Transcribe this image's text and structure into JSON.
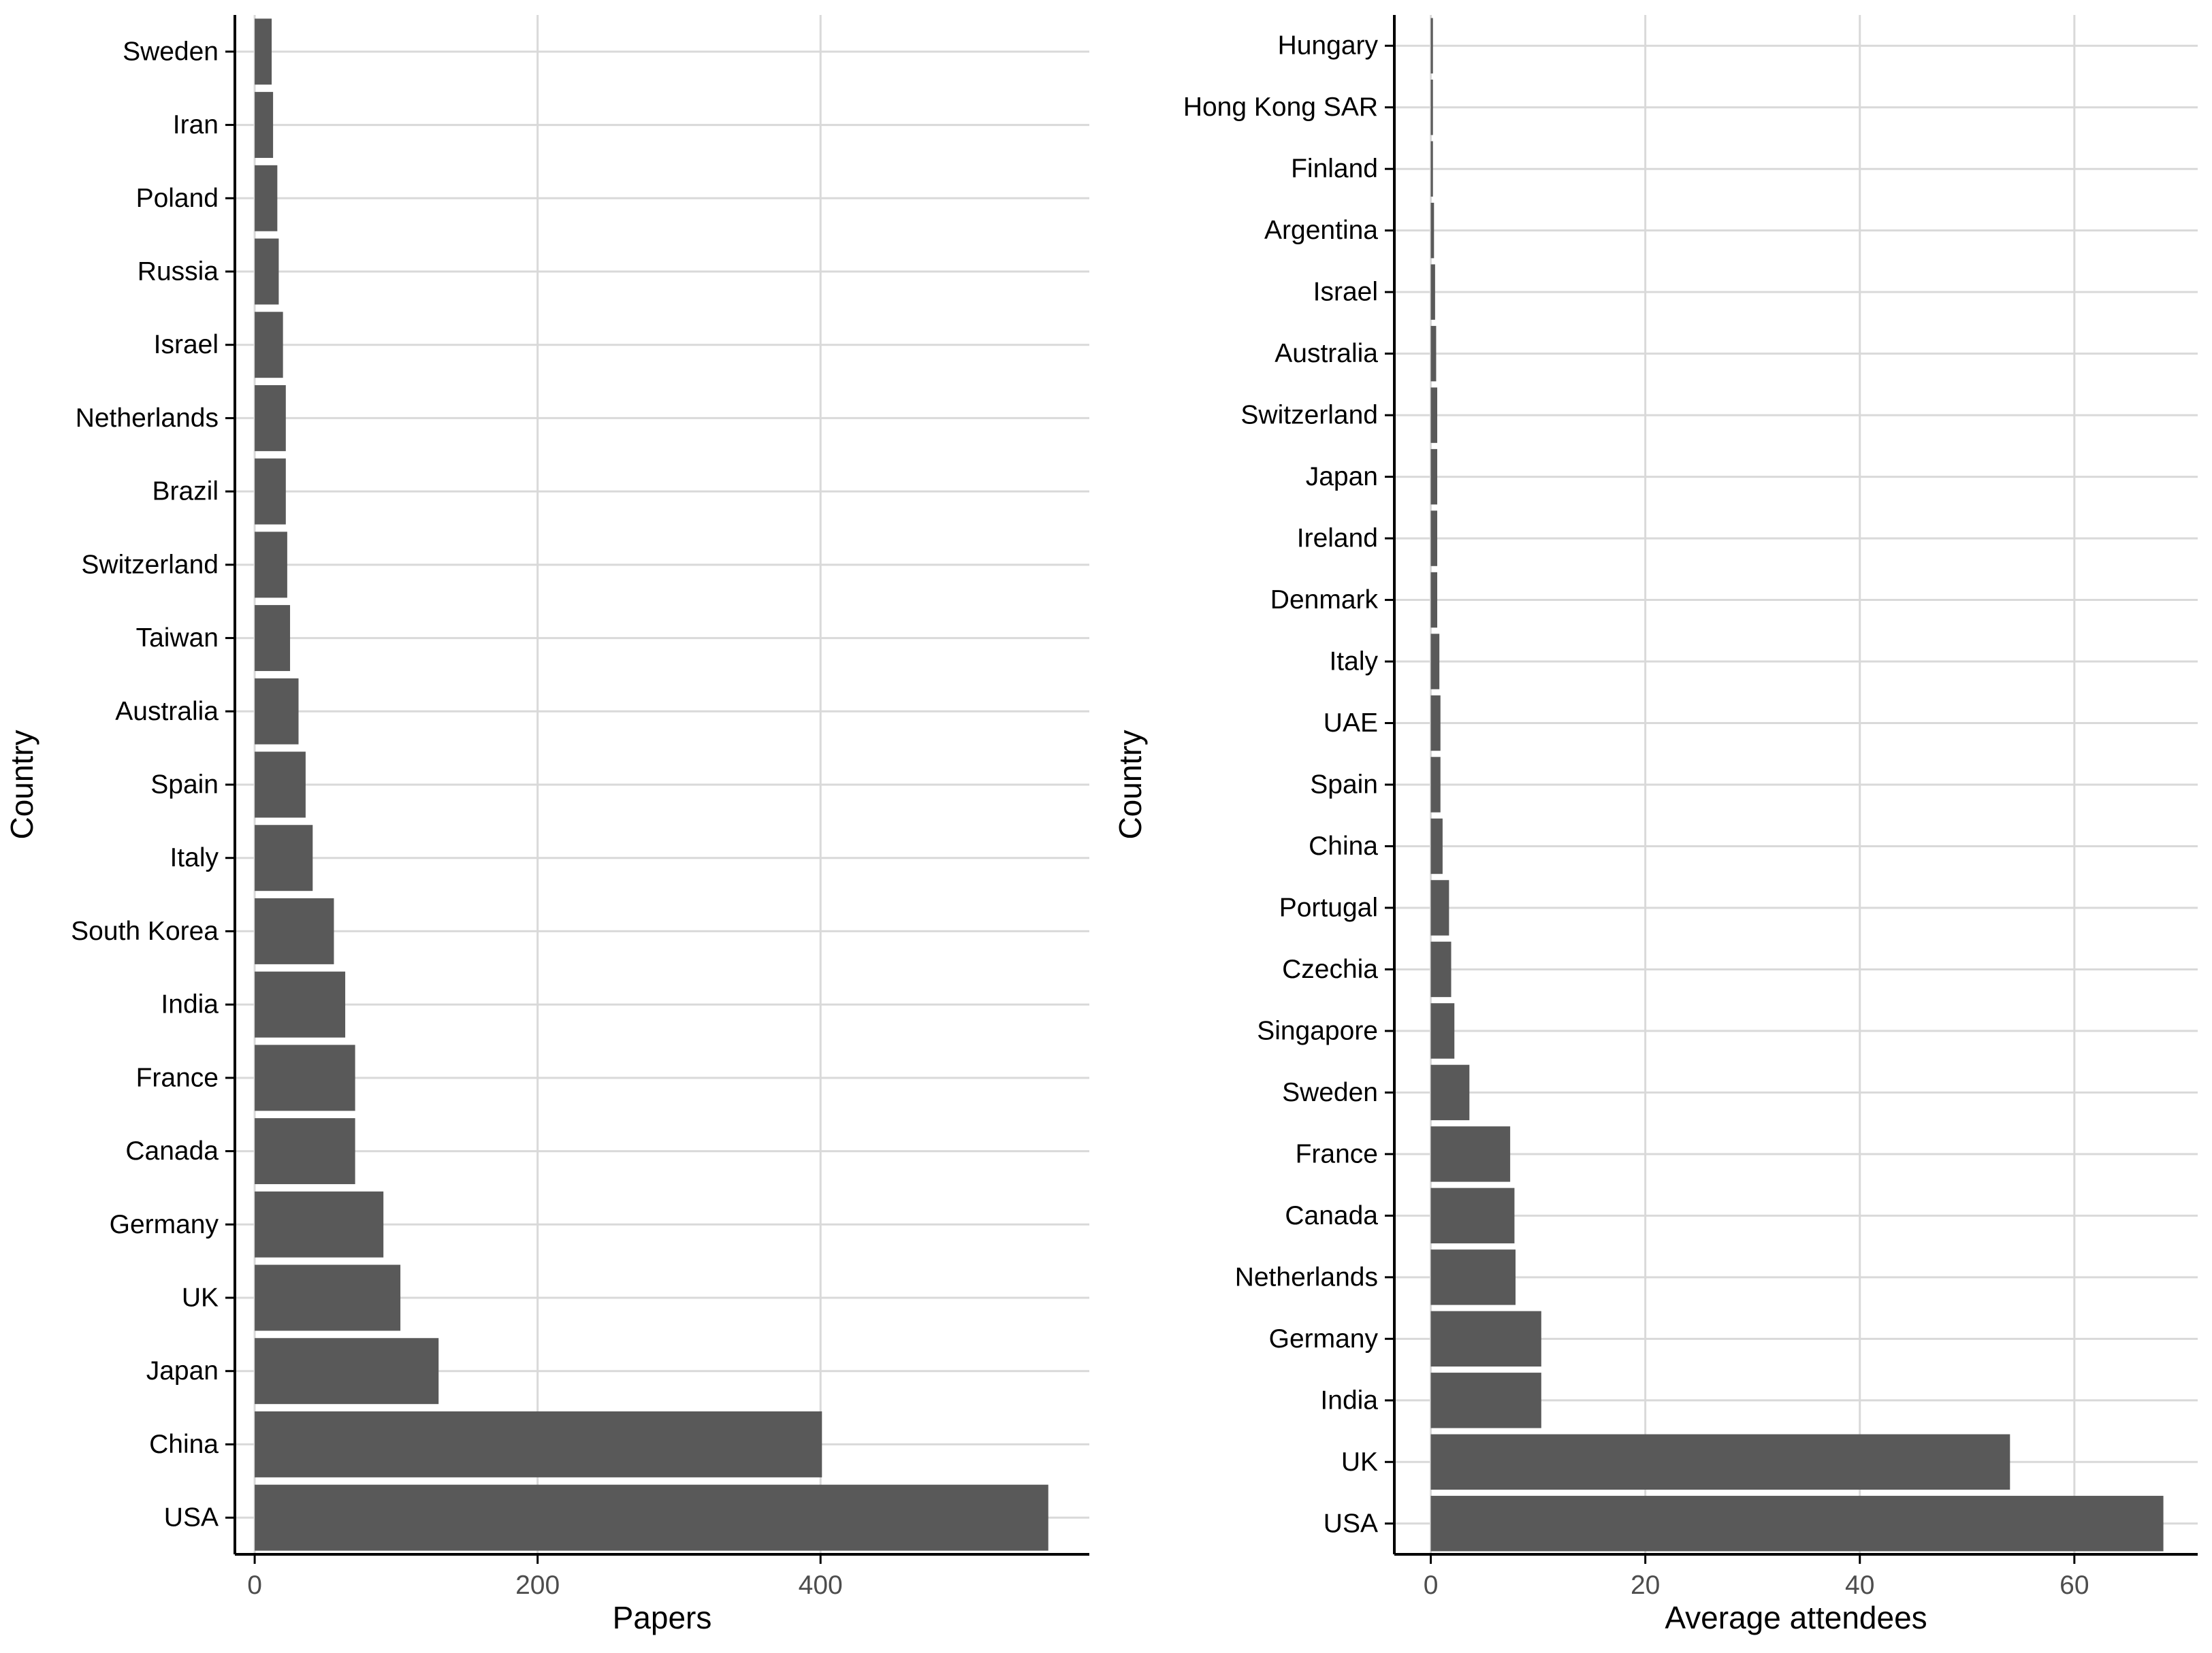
{
  "chart_data": [
    {
      "type": "bar",
      "orientation": "horizontal",
      "title": "",
      "xlabel": "Papers",
      "ylabel": "Country",
      "xlim": [
        -14,
        590
      ],
      "xticks": [
        0,
        200,
        400
      ],
      "xtick_labels": [
        "0",
        "200",
        "400"
      ],
      "grid": true,
      "categories": [
        "USA",
        "China",
        "Japan",
        "UK",
        "Germany",
        "Canada",
        "France",
        "India",
        "South Korea",
        "Italy",
        "Spain",
        "Australia",
        "Taiwan",
        "Switzerland",
        "Brazil",
        "Netherlands",
        "Israel",
        "Russia",
        "Poland",
        "Iran",
        "Sweden"
      ],
      "values": [
        561,
        401,
        130,
        103,
        91,
        71,
        71,
        64,
        56,
        41,
        36,
        31,
        25,
        23,
        22,
        22,
        20,
        17,
        16,
        13,
        12
      ]
    },
    {
      "type": "bar",
      "orientation": "horizontal",
      "title": "",
      "xlabel": "Average attendees",
      "ylabel": "Country",
      "xlim": [
        -3.4,
        71.5
      ],
      "xticks": [
        0,
        20,
        40,
        60
      ],
      "xtick_labels": [
        "0",
        "20",
        "40",
        "60"
      ],
      "grid": true,
      "categories": [
        "USA",
        "UK",
        "India",
        "Germany",
        "Netherlands",
        "Canada",
        "France",
        "Sweden",
        "Singapore",
        "Czechia",
        "Portugal",
        "China",
        "Spain",
        "UAE",
        "Italy",
        "Denmark",
        "Ireland",
        "Japan",
        "Switzerland",
        "Australia",
        "Israel",
        "Argentina",
        "Finland",
        "Hong Kong SAR",
        "Hungary"
      ],
      "values": [
        68.3,
        54,
        10.3,
        10.3,
        7.9,
        7.8,
        7.4,
        3.6,
        2.2,
        1.9,
        1.7,
        1.1,
        0.9,
        0.9,
        0.8,
        0.6,
        0.6,
        0.6,
        0.6,
        0.5,
        0.4,
        0.3,
        0.2,
        0.2,
        0.2
      ]
    }
  ],
  "style": {
    "bar_color": "#595959",
    "grid_color": "#d9d9d9",
    "axis_color": "#000000",
    "tick_label_color": "#4d4d4d"
  }
}
